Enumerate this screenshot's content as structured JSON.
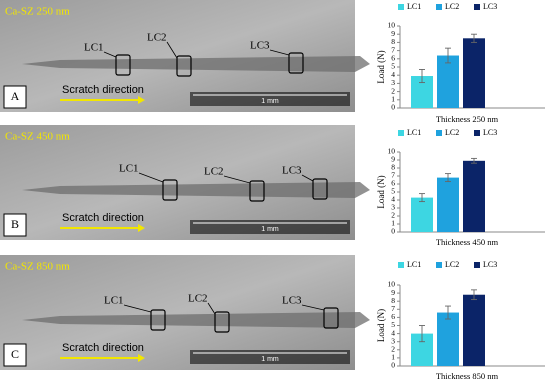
{
  "images": [
    {
      "label": "Ca-SZ   250 nm",
      "panel": "A",
      "markers": [
        "LC1",
        "LC2",
        "LC3"
      ],
      "arrow_text": "Scratch direction",
      "scale": "1 mm"
    },
    {
      "label": "Ca-SZ   450 nm",
      "panel": "B",
      "markers": [
        "LC1",
        "LC2",
        "LC3"
      ],
      "arrow_text": "Scratch direction",
      "scale": "1 mm"
    },
    {
      "label": "Ca-SZ   850 nm",
      "panel": "C",
      "markers": [
        "LC1",
        "LC2",
        "LC3"
      ],
      "arrow_text": "Scratch direction",
      "scale": "1 mm"
    }
  ],
  "chart_data": [
    {
      "type": "bar",
      "x_label": "Thickness 250 nm",
      "y_label": "Load (N)",
      "ylim": [
        0,
        10
      ],
      "yticks": [
        0,
        1,
        2,
        3,
        4,
        5,
        6,
        7,
        8,
        9,
        10
      ],
      "series": [
        {
          "name": "LC1",
          "color": "#3dd6e2",
          "values": [
            3.9
          ],
          "errors": [
            0.8
          ]
        },
        {
          "name": "LC2",
          "color": "#1fa2de",
          "values": [
            6.4
          ],
          "errors": [
            0.9
          ]
        },
        {
          "name": "LC3",
          "color": "#0b2468",
          "values": [
            8.5
          ],
          "errors": [
            0.5
          ]
        }
      ]
    },
    {
      "type": "bar",
      "x_label": "Thickness 450 nm",
      "y_label": "Load (N)",
      "ylim": [
        0,
        10
      ],
      "yticks": [
        0,
        1,
        2,
        3,
        4,
        5,
        6,
        7,
        8,
        9,
        10
      ],
      "series": [
        {
          "name": "LC1",
          "color": "#3dd6e2",
          "values": [
            4.3
          ],
          "errors": [
            0.5
          ]
        },
        {
          "name": "LC2",
          "color": "#1fa2de",
          "values": [
            6.8
          ],
          "errors": [
            0.5
          ]
        },
        {
          "name": "LC3",
          "color": "#0b2468",
          "values": [
            8.9
          ],
          "errors": [
            0.3
          ]
        }
      ]
    },
    {
      "type": "bar",
      "x_label": "Thickness 850 nm",
      "y_label": "Load (N)",
      "ylim": [
        0,
        10
      ],
      "yticks": [
        0,
        1,
        2,
        3,
        4,
        5,
        6,
        7,
        8,
        9,
        10
      ],
      "series": [
        {
          "name": "LC1",
          "color": "#3dd6e2",
          "values": [
            4.0
          ],
          "errors": [
            1.0
          ]
        },
        {
          "name": "LC2",
          "color": "#1fa2de",
          "values": [
            6.6
          ],
          "errors": [
            0.8
          ]
        },
        {
          "name": "LC3",
          "color": "#0b2468",
          "values": [
            8.8
          ],
          "errors": [
            0.6
          ]
        }
      ]
    }
  ]
}
